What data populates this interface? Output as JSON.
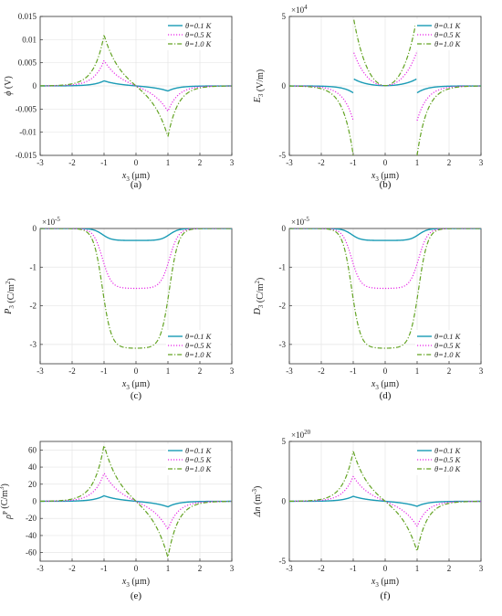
{
  "colors": {
    "s1": "#1a9bb5",
    "s2": "#e626e6",
    "s3": "#63a323",
    "grid": "#e6e6e6",
    "axis": "#333333"
  },
  "chart_data": [
    {
      "id": "a",
      "type": "line",
      "caption": "(a)",
      "ylabel_sym": "ϕ",
      "ylabel_unit": " (V)",
      "xlabel_sym": "x",
      "xlabel_sub": "3",
      "xlabel_unit": " (μm)",
      "xlim": [
        -3,
        3
      ],
      "ylim": [
        -0.015,
        0.015
      ],
      "xticks": [
        -3,
        -2,
        -1,
        0,
        1,
        2,
        3
      ],
      "yticks": [
        -0.015,
        -0.01,
        -0.005,
        0,
        0.005,
        0.01,
        0.015
      ],
      "ytick_labels": [
        "-0.015",
        "-0.01",
        "-0.005",
        "0",
        "0.005",
        "0.01",
        "0.015"
      ],
      "exponent": "",
      "legend_pos": "top-right",
      "series": [
        {
          "name": "θ=0.1 K",
          "style": "solid",
          "peak": 0.0011
        },
        {
          "name": "θ=0.5 K",
          "style": "dotted",
          "peak": 0.0055
        },
        {
          "name": "θ=1.0 K",
          "style": "dashdot",
          "peak": 0.011
        }
      ]
    },
    {
      "id": "b",
      "type": "line",
      "caption": "(b)",
      "ylabel_sym": "E",
      "ylabel_sub": "3",
      "ylabel_unit": " (V/m)",
      "xlabel_sym": "x",
      "xlabel_sub": "3",
      "xlabel_unit": " (μm)",
      "xlim": [
        -3,
        3
      ],
      "ylim": [
        -5,
        5
      ],
      "xticks": [
        -3,
        -2,
        -1,
        0,
        1,
        2,
        3
      ],
      "yticks": [
        -5,
        0,
        5
      ],
      "ytick_labels": [
        "-5",
        "0",
        "5"
      ],
      "exponent": "×10",
      "exponent_power": "4",
      "legend_pos": "top-right",
      "series": [
        {
          "name": "θ=0.1 K",
          "style": "solid",
          "inner_edge": 0.5,
          "outer_edge": -0.5
        },
        {
          "name": "θ=0.5 K",
          "style": "dotted",
          "inner_edge": 2.5,
          "outer_edge": -2.5
        },
        {
          "name": "θ=1.0 K",
          "style": "dashdot",
          "inner_edge": 5.0,
          "outer_edge": -5.0
        }
      ]
    },
    {
      "id": "c",
      "type": "line",
      "caption": "(c)",
      "ylabel_sym": "P",
      "ylabel_sub": "3",
      "ylabel_unit": " (C/m",
      "ylabel_sup": "2",
      "ylabel_end": ")",
      "xlabel_sym": "x",
      "xlabel_sub": "3",
      "xlabel_unit": " (μm)",
      "xlim": [
        -3,
        3
      ],
      "ylim": [
        -3.5,
        0
      ],
      "xticks": [
        -3,
        -2,
        -1,
        0,
        1,
        2,
        3
      ],
      "yticks": [
        -3,
        -2,
        -1,
        0
      ],
      "ytick_labels": [
        "-3",
        "-2",
        "-1",
        "0"
      ],
      "exponent": "×10",
      "exponent_power": "-5",
      "legend_pos": "bottom-right",
      "series": [
        {
          "name": "θ=0.1 K",
          "style": "solid",
          "min": -0.31
        },
        {
          "name": "θ=0.5 K",
          "style": "dotted",
          "min": -1.55
        },
        {
          "name": "θ=1.0 K",
          "style": "dashdot",
          "min": -3.1
        }
      ]
    },
    {
      "id": "d",
      "type": "line",
      "caption": "(d)",
      "ylabel_sym": "D",
      "ylabel_sub": "3",
      "ylabel_unit": " (C/m",
      "ylabel_sup": "2",
      "ylabel_end": ")",
      "xlabel_sym": "x",
      "xlabel_sub": "3",
      "xlabel_unit": " (μm)",
      "xlim": [
        -3,
        3
      ],
      "ylim": [
        -3.5,
        0
      ],
      "xticks": [
        -3,
        -2,
        -1,
        0,
        1,
        2,
        3
      ],
      "yticks": [
        -3,
        -2,
        -1,
        0
      ],
      "ytick_labels": [
        "-3",
        "-2",
        "-1",
        "0"
      ],
      "exponent": "×10",
      "exponent_power": "-5",
      "legend_pos": "bottom-right",
      "series": [
        {
          "name": "θ=0.1 K",
          "style": "solid",
          "min": -0.31
        },
        {
          "name": "θ=0.5 K",
          "style": "dotted",
          "min": -1.55
        },
        {
          "name": "θ=1.0 K",
          "style": "dashdot",
          "min": -3.1
        }
      ]
    },
    {
      "id": "e",
      "type": "line",
      "caption": "(e)",
      "ylabel_sym": "ρ",
      "ylabel_sup2": "P",
      "ylabel_unit": " (C/m",
      "ylabel_sup": "3",
      "ylabel_end": ")",
      "xlabel_sym": "x",
      "xlabel_sub": "3",
      "xlabel_unit": " (μm)",
      "xlim": [
        -3,
        3
      ],
      "ylim": [
        -70,
        70
      ],
      "xticks": [
        -3,
        -2,
        -1,
        0,
        1,
        2,
        3
      ],
      "yticks": [
        -60,
        -40,
        -20,
        0,
        20,
        40,
        60
      ],
      "ytick_labels": [
        "-60",
        "-40",
        "-20",
        "0",
        "20",
        "40",
        "60"
      ],
      "exponent": "",
      "legend_pos": "top-right",
      "series": [
        {
          "name": "θ=0.1 K",
          "style": "solid",
          "peak": 6.5
        },
        {
          "name": "θ=0.5 K",
          "style": "dotted",
          "peak": 33
        },
        {
          "name": "θ=1.0 K",
          "style": "dashdot",
          "peak": 66
        }
      ]
    },
    {
      "id": "f",
      "type": "line",
      "caption": "(f)",
      "ylabel_sym": "Δn",
      "ylabel_unit": " (m",
      "ylabel_sup": "-3",
      "ylabel_end": ")",
      "xlabel_sym": "x",
      "xlabel_sub": "3",
      "xlabel_unit": " (μm)",
      "xlim": [
        -3,
        3
      ],
      "ylim": [
        -5,
        5
      ],
      "xticks": [
        -3,
        -2,
        -1,
        0,
        1,
        2,
        3
      ],
      "yticks": [
        -5,
        0,
        5
      ],
      "ytick_labels": [
        "-5",
        "0",
        "5"
      ],
      "exponent": "×10",
      "exponent_power": "20",
      "legend_pos": "top-right",
      "series": [
        {
          "name": "θ=0.1 K",
          "style": "solid",
          "peak": 0.42
        },
        {
          "name": "θ=0.5 K",
          "style": "dotted",
          "peak": 2.1
        },
        {
          "name": "θ=1.0 K",
          "style": "dashdot",
          "peak": 4.2
        }
      ]
    }
  ]
}
